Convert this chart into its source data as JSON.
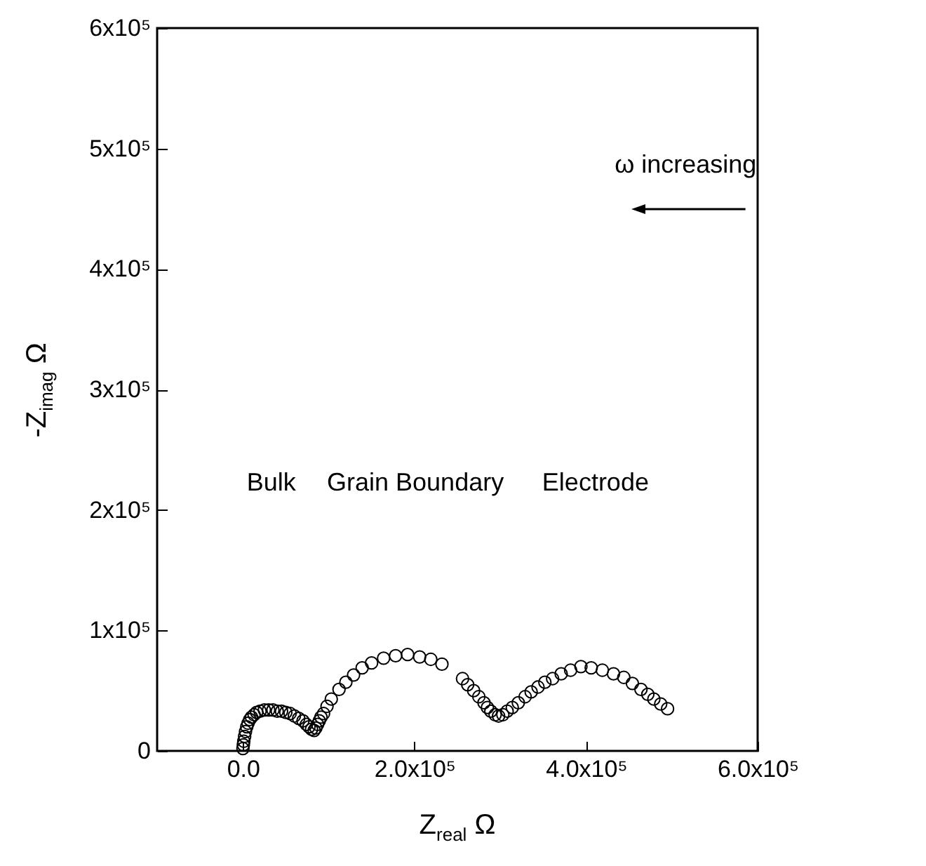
{
  "chart_data": {
    "type": "scatter",
    "xlabel": "Z$_{real}$ Ω",
    "ylabel": "-Z$_{imag}$ Ω",
    "annotations": [
      "Bulk",
      "Grain Boundary",
      "Electrode",
      "ω increasing"
    ],
    "marker": "circle",
    "xlim": [
      -100000,
      600000
    ],
    "ylim": [
      0,
      600000
    ],
    "xticks": [
      {
        "value": 0,
        "label": "0.0"
      },
      {
        "value": 200000,
        "label": "2.0x10⁵"
      },
      {
        "value": 400000,
        "label": "4.0x10⁵"
      },
      {
        "value": 600000,
        "label": "6.0x10⁵"
      }
    ],
    "yticks": [
      0,
      {
        "value": 100000,
        "label": "1x10⁵"
      },
      {
        "value": 200000,
        "label": "2x10⁵"
      },
      {
        "value": 300000,
        "label": "3x10⁵"
      },
      {
        "value": 400000,
        "label": "4x10⁵"
      },
      {
        "value": 500000,
        "label": "5x10⁵"
      },
      {
        "value": 600000,
        "label": "6x10⁵"
      }
    ],
    "series": [
      {
        "color": "#000000",
        "x": [
          0,
          500,
          1000,
          2000,
          3000,
          4500,
          6000,
          8000,
          10000,
          13000,
          16000,
          20000,
          25000,
          30000,
          35000,
          40000,
          45000,
          50000,
          55000,
          60000,
          65000,
          70000,
          74000,
          77000,
          80000,
          83000,
          85000,
          87000,
          89000,
          91000,
          94000,
          98000,
          103000,
          112000,
          120000,
          129000,
          139000,
          150000,
          164000,
          178000,
          192000,
          206000,
          219000,
          232000,
          256000,
          262000,
          269000,
          275000,
          281000,
          285000,
          289000,
          294000,
          298000,
          303000,
          308000,
          314000,
          321000,
          329000,
          336000,
          344000,
          352000,
          361000,
          371000,
          382000,
          394000,
          406000,
          419000,
          432000,
          444000,
          454000,
          464000,
          472000,
          479000,
          487000,
          495000
        ],
        "values": [
          2000,
          5000,
          8000,
          12000,
          16000,
          20000,
          23000,
          26000,
          28000,
          30000,
          32000,
          33000,
          34000,
          34000,
          34000,
          33000,
          33000,
          32000,
          31000,
          29000,
          27000,
          25000,
          22000,
          20000,
          18000,
          17000,
          19000,
          22000,
          25000,
          28000,
          31000,
          37000,
          43000,
          51000,
          57000,
          63000,
          69000,
          73000,
          77000,
          79000,
          80000,
          78000,
          76000,
          72000,
          60000,
          55000,
          50000,
          45000,
          40000,
          36000,
          33000,
          30000,
          29000,
          30000,
          33000,
          36000,
          40000,
          45000,
          49000,
          53000,
          57000,
          60000,
          64000,
          67000,
          70000,
          69000,
          67000,
          64000,
          61000,
          56000,
          51000,
          47000,
          43000,
          39000,
          35000
        ]
      }
    ]
  }
}
